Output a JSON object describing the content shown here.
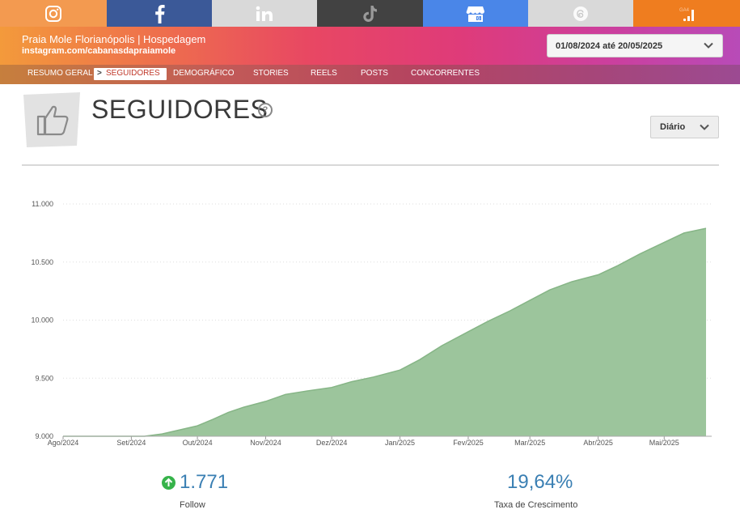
{
  "social_tabs": [
    {
      "name": "instagram",
      "color": "#f39a50",
      "icon": "instagram-icon"
    },
    {
      "name": "facebook",
      "color": "#3b5998",
      "icon": "facebook-icon"
    },
    {
      "name": "linkedin",
      "color": "#d9d9d9",
      "icon": "linkedin-icon"
    },
    {
      "name": "tiktok",
      "color": "#424242",
      "icon": "tiktok-icon"
    },
    {
      "name": "google-my-business",
      "color": "#4a86e8",
      "icon": "store-icon"
    },
    {
      "name": "threads",
      "color": "#d9d9d9",
      "icon": "threads-icon"
    },
    {
      "name": "google-analytics",
      "color": "#ef7d1f",
      "icon": "analytics-icon"
    }
  ],
  "header": {
    "profile_name": "Praia Mole Florianópolis | Hospedagem",
    "profile_url": "instagram.com/cabanasdapraiamole",
    "date_range": "01/08/2024 até 20/05/2025"
  },
  "nav": {
    "items": [
      "RESUMO GERAL",
      "SEGUIDORES",
      "DEMOGRÁFICO",
      "STORIES",
      "REELS",
      "POSTS",
      "CONCORRENTES"
    ],
    "active_index": 1
  },
  "page": {
    "title": "SEGUIDORES",
    "help": "?",
    "period": "Diário"
  },
  "chart_data": {
    "type": "area",
    "title": "",
    "xlabel": "",
    "ylabel": "",
    "x_tick_labels": [
      "Ago/2024",
      "Set/2024",
      "Out/2024",
      "Nov/2024",
      "Dez/2024",
      "Jan/2025",
      "Fev/2025",
      "Mar/2025",
      "Abr/2025",
      "Mai/2025"
    ],
    "y_tick_labels": [
      "11.000",
      "10.500",
      "10.000",
      "9.500",
      "9.000"
    ],
    "y_ticks": [
      11000,
      10500,
      10000,
      9500,
      9000
    ],
    "ylim": [
      9000,
      11000
    ],
    "x_range": [
      "2024-08-01",
      "2025-05-20"
    ],
    "grid": "horizontal dotted",
    "fill_color": "#9cc59c",
    "line_color": "#86b586",
    "series": [
      {
        "x": [
          "2024-08-01",
          "2024-09-07",
          "2024-09-15",
          "2024-10-01",
          "2024-10-08",
          "2024-10-15",
          "2024-10-22",
          "2024-11-01",
          "2024-11-10",
          "2024-11-20",
          "2024-12-01",
          "2024-12-10",
          "2024-12-20",
          "2025-01-01",
          "2025-01-10",
          "2025-01-20",
          "2025-02-01",
          "2025-02-10",
          "2025-02-20",
          "2025-03-01",
          "2025-03-10",
          "2025-03-20",
          "2025-04-01",
          "2025-04-10",
          "2025-04-20",
          "2025-05-01",
          "2025-05-10",
          "2025-05-20"
        ],
        "values": [
          9000,
          9000,
          9020,
          9090,
          9145,
          9205,
          9250,
          9300,
          9360,
          9390,
          9420,
          9470,
          9510,
          9570,
          9660,
          9780,
          9900,
          9990,
          10080,
          10170,
          10260,
          10330,
          10390,
          10470,
          10570,
          10670,
          10750,
          10790
        ]
      }
    ]
  },
  "metrics": [
    {
      "value": "1.771",
      "label": "Follow",
      "trend": "up",
      "icon": "arrow-up-icon"
    },
    {
      "value": "19,64%",
      "label": "Taxa de Crescimento"
    }
  ]
}
